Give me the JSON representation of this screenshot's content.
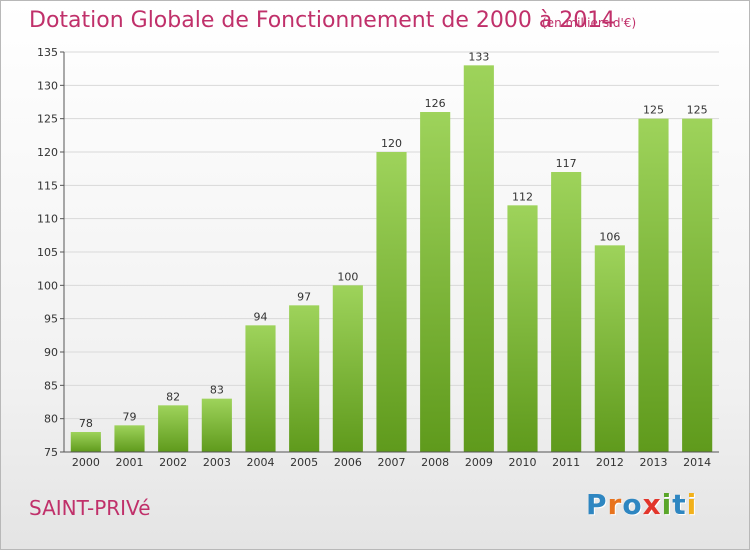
{
  "title": "Dotation Globale de Fonctionnement de 2000 à 2014",
  "subtitle": "(en milliers d'€)",
  "commune": "SAINT-PRIVé",
  "logo": {
    "text": "Proxiti",
    "letters": [
      {
        "char": "P",
        "color": "#2e86c1"
      },
      {
        "char": "r",
        "color": "#e8731d"
      },
      {
        "char": "o",
        "color": "#2e86c1"
      },
      {
        "char": "x",
        "color": "#e2352b"
      },
      {
        "char": "i",
        "color": "#5aa62a"
      },
      {
        "char": "t",
        "color": "#2e86c1"
      },
      {
        "char": "i",
        "color": "#f2b11b"
      }
    ]
  },
  "colors": {
    "title": "#c0306a",
    "bar_light": "#9ed35b",
    "bar_dark": "#5f9a1c",
    "grid": "#d9d9d9"
  },
  "chart_data": {
    "type": "bar",
    "title": "Dotation Globale de Fonctionnement de 2000 à 2014",
    "subtitle": "(en milliers d'€)",
    "categories": [
      "2000",
      "2001",
      "2002",
      "2003",
      "2004",
      "2005",
      "2006",
      "2007",
      "2008",
      "2009",
      "2010",
      "2011",
      "2012",
      "2013",
      "2014"
    ],
    "values": [
      78,
      79,
      82,
      83,
      94,
      97,
      100,
      120,
      126,
      133,
      112,
      117,
      106,
      125,
      125
    ],
    "ylim": [
      75,
      135
    ],
    "yticks": [
      75,
      80,
      85,
      90,
      95,
      100,
      105,
      110,
      115,
      120,
      125,
      130,
      135
    ],
    "grid": true,
    "xlabel": "",
    "ylabel": ""
  }
}
